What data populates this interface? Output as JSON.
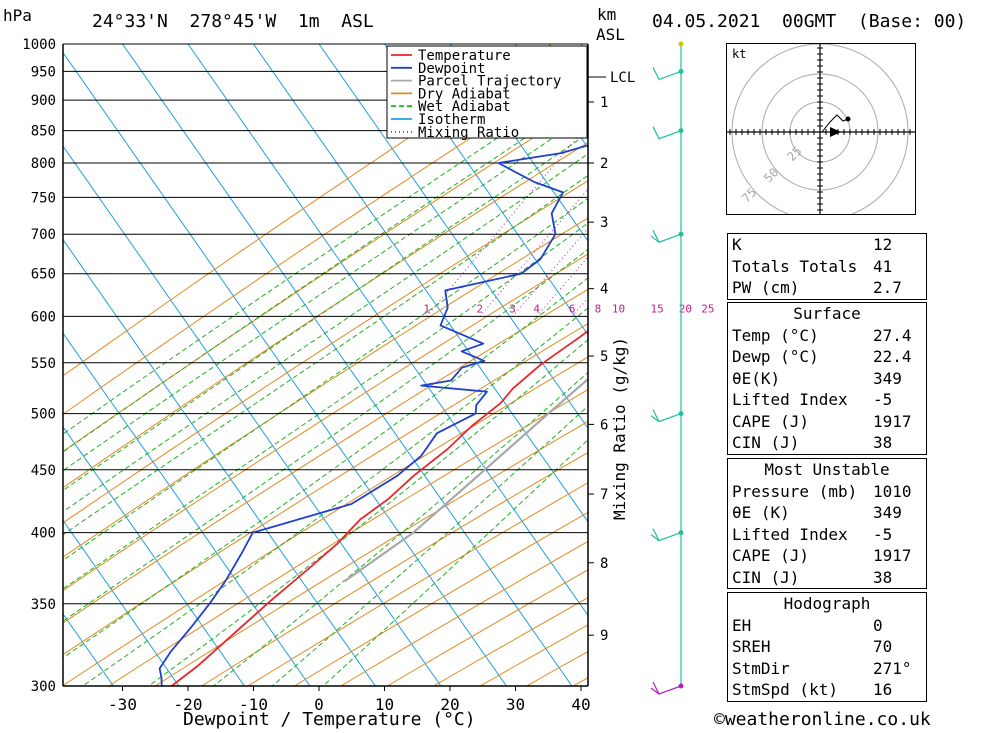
{
  "header": {
    "pressure_unit": "hPa",
    "location": "24°33'N  278°45'W  1m  ASL",
    "height_unit_line1": "km",
    "height_unit_line2": "ASL",
    "datetime": "04.05.2021  00GMT  (Base: 00)"
  },
  "footer": {
    "copyright": "©weatheronline.co.uk"
  },
  "colors": {
    "temperature": "#e8262c",
    "dewpoint": "#2040d0",
    "parcel": "#a8a8a8",
    "dry_adiabat": "#e08a20",
    "wet_adiabat": "#20b020",
    "isotherm": "#20a0e0",
    "mixing_ratio": "#c0208a",
    "wind": "#20c0a0"
  },
  "chart_data": {
    "type": "line",
    "title": "",
    "xlabel": "Dewpoint / Temperature (°C)",
    "ylabel": "hPa",
    "secondary_ylabel": "Mixing Ratio (g/kg)",
    "xlim": [
      -40,
      40
    ],
    "ylim": [
      1000,
      300
    ],
    "y_scale": "log",
    "x_ticks": [
      -30,
      -20,
      -10,
      0,
      10,
      20,
      30,
      40
    ],
    "pressure_levels": [
      300,
      350,
      400,
      450,
      500,
      550,
      600,
      650,
      700,
      750,
      800,
      850,
      900,
      950,
      1000
    ],
    "km_ticks": [
      {
        "label": "9",
        "p": 330
      },
      {
        "label": "8",
        "p": 378
      },
      {
        "label": "7",
        "p": 430
      },
      {
        "label": "6",
        "p": 490
      },
      {
        "label": "5",
        "p": 557
      },
      {
        "label": "4",
        "p": 632
      },
      {
        "label": "3",
        "p": 716
      },
      {
        "label": "2",
        "p": 800
      },
      {
        "label": "1",
        "p": 897
      }
    ],
    "lcl": {
      "label": "LCL",
      "p": 940
    },
    "mixing_ratio_values": [
      "1",
      "2",
      "3",
      "4",
      "6",
      "8",
      "10",
      "15",
      "20",
      "25"
    ],
    "legend": {
      "placement": "top-right",
      "entries": [
        "Temperature",
        "Dewpoint",
        "Parcel Trajectory",
        "Dry Adiabat",
        "Wet Adiabat",
        "Isotherm",
        "Mixing Ratio"
      ]
    },
    "grid": true,
    "series": [
      {
        "name": "Temperature",
        "points": [
          [
            27.4,
            1000
          ],
          [
            25.5,
            975
          ],
          [
            26.1,
            960
          ],
          [
            24.5,
            930
          ],
          [
            23.0,
            905
          ],
          [
            21.5,
            880
          ],
          [
            20.5,
            860
          ],
          [
            22.0,
            840
          ],
          [
            22.5,
            815
          ],
          [
            22.3,
            800
          ],
          [
            20.6,
            770
          ],
          [
            17.8,
            740
          ],
          [
            15.0,
            710
          ],
          [
            12.3,
            680
          ],
          [
            9.8,
            655
          ],
          [
            7.0,
            628
          ],
          [
            4.6,
            600
          ],
          [
            2.4,
            576
          ],
          [
            -0.5,
            548
          ],
          [
            -2.2,
            524
          ],
          [
            -2.5,
            510
          ],
          [
            -4.5,
            488
          ],
          [
            -5.7,
            468
          ],
          [
            -8.0,
            445
          ],
          [
            -9.4,
            426
          ],
          [
            -11.5,
            410
          ],
          [
            -12.4,
            392
          ],
          [
            -14.0,
            375
          ],
          [
            -16.5,
            352
          ],
          [
            -18.7,
            330
          ],
          [
            -20.6,
            312
          ],
          [
            -22.5,
            300
          ]
        ]
      },
      {
        "name": "Dewpoint",
        "points": [
          [
            22.4,
            1000
          ],
          [
            20.8,
            975
          ],
          [
            19.3,
            957
          ],
          [
            18.5,
            940
          ],
          [
            16.9,
            915
          ],
          [
            15.5,
            895
          ],
          [
            12.0,
            870
          ],
          [
            8.5,
            850
          ],
          [
            -11.0,
            848
          ],
          [
            -20.0,
            815
          ],
          [
            -28.5,
            800
          ],
          [
            -21.0,
            772
          ],
          [
            -15.5,
            757
          ],
          [
            -15.0,
            728
          ],
          [
            -12.2,
            700
          ],
          [
            -11.8,
            668
          ],
          [
            -13.2,
            650
          ],
          [
            -23.0,
            630
          ],
          [
            -20.8,
            610
          ],
          [
            -20.0,
            590
          ],
          [
            -11.5,
            570
          ],
          [
            -14.0,
            562
          ],
          [
            -9.5,
            552
          ],
          [
            -12.2,
            545
          ],
          [
            -12.5,
            532
          ],
          [
            -16.5,
            527
          ],
          [
            -5.8,
            521
          ],
          [
            -6.0,
            508
          ],
          [
            -5.2,
            500
          ],
          [
            -9.0,
            482
          ],
          [
            -9.0,
            462
          ],
          [
            -10.5,
            445
          ],
          [
            -14.5,
            422
          ],
          [
            -26.5,
            400
          ],
          [
            -26.0,
            385
          ],
          [
            -25.5,
            365
          ],
          [
            -25.5,
            350
          ],
          [
            -25.8,
            335
          ],
          [
            -26.3,
            320
          ],
          [
            -26.2,
            310
          ],
          [
            -25.0,
            305
          ],
          [
            -24.0,
            300
          ]
        ]
      },
      {
        "name": "Parcel Trajectory",
        "points": [
          [
            27.4,
            1000
          ],
          [
            24.8,
            975
          ],
          [
            23.9,
            950
          ],
          [
            23.2,
            940
          ],
          [
            22.5,
            900
          ],
          [
            21.2,
            850
          ],
          [
            20.0,
            800
          ],
          [
            18.4,
            750
          ],
          [
            16.5,
            700
          ],
          [
            14.5,
            650
          ],
          [
            12.1,
            600
          ],
          [
            9.4,
            550
          ],
          [
            5.9,
            500
          ],
          [
            2.2,
            450
          ],
          [
            -2.0,
            400
          ],
          [
            -7.3,
            365
          ]
        ]
      }
    ]
  },
  "wind_profile": {
    "levels": [
      1000,
      950,
      850,
      700,
      500,
      400,
      300
    ]
  },
  "hodograph": {
    "unit_label": "kt",
    "ring_labels": [
      "25",
      "50",
      "75"
    ]
  },
  "params": {
    "indices": [
      {
        "label": "K",
        "value": "12"
      },
      {
        "label": "Totals Totals",
        "value": "41"
      },
      {
        "label": "PW (cm)",
        "value": "2.7"
      }
    ],
    "surface": {
      "title": "Surface",
      "rows": [
        {
          "label": "Temp (°C)",
          "value": "27.4"
        },
        {
          "label": "Dewp (°C)",
          "value": "22.4"
        },
        {
          "label": "θE(K)",
          "value": "349"
        },
        {
          "label": "Lifted Index",
          "value": "-5"
        },
        {
          "label": "CAPE (J)",
          "value": "1917"
        },
        {
          "label": "CIN (J)",
          "value": "38"
        }
      ]
    },
    "most_unstable": {
      "title": "Most Unstable",
      "rows": [
        {
          "label": "Pressure (mb)",
          "value": "1010"
        },
        {
          "label": "θE (K)",
          "value": "349"
        },
        {
          "label": "Lifted Index",
          "value": "-5"
        },
        {
          "label": "CAPE (J)",
          "value": "1917"
        },
        {
          "label": "CIN (J)",
          "value": "38"
        }
      ]
    },
    "hodograph_params": {
      "title": "Hodograph",
      "rows": [
        {
          "label": "EH",
          "value": "0"
        },
        {
          "label": "SREH",
          "value": "70"
        },
        {
          "label": "StmDir",
          "value": "271°"
        },
        {
          "label": "StmSpd (kt)",
          "value": "16"
        }
      ]
    }
  }
}
